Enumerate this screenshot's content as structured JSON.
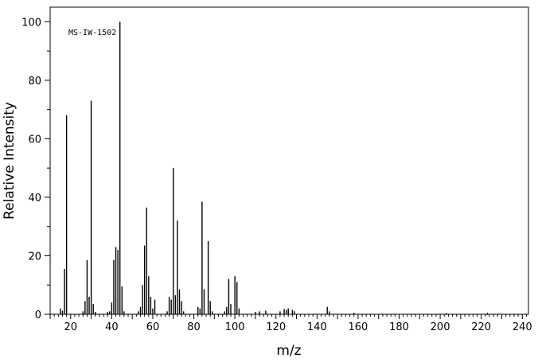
{
  "chart_data": {
    "type": "bar",
    "annotation": "MS-IW-1502",
    "xlabel": "m/z",
    "ylabel": "Relative Intensity",
    "xlim": [
      10,
      243
    ],
    "ylim": [
      0,
      105
    ],
    "xticks": [
      20,
      40,
      60,
      80,
      100,
      120,
      140,
      160,
      180,
      200,
      220,
      240
    ],
    "yticks": [
      0,
      20,
      40,
      60,
      80,
      100
    ],
    "grid": false,
    "color": "#000000",
    "peaks": [
      {
        "mz": 15,
        "intensity": 2.0
      },
      {
        "mz": 16,
        "intensity": 1.2
      },
      {
        "mz": 17,
        "intensity": 15.5
      },
      {
        "mz": 18,
        "intensity": 68.0
      },
      {
        "mz": 26,
        "intensity": 1.0
      },
      {
        "mz": 27,
        "intensity": 4.5
      },
      {
        "mz": 28,
        "intensity": 18.5
      },
      {
        "mz": 29,
        "intensity": 6.0
      },
      {
        "mz": 30,
        "intensity": 73.0
      },
      {
        "mz": 31,
        "intensity": 3.5
      },
      {
        "mz": 32,
        "intensity": 0.8
      },
      {
        "mz": 38,
        "intensity": 0.8
      },
      {
        "mz": 39,
        "intensity": 1.0
      },
      {
        "mz": 40,
        "intensity": 4.0
      },
      {
        "mz": 41,
        "intensity": 18.5
      },
      {
        "mz": 42,
        "intensity": 23.0
      },
      {
        "mz": 43,
        "intensity": 22.0
      },
      {
        "mz": 44,
        "intensity": 100.0
      },
      {
        "mz": 45,
        "intensity": 9.5
      },
      {
        "mz": 46,
        "intensity": 1.0
      },
      {
        "mz": 53,
        "intensity": 1.0
      },
      {
        "mz": 54,
        "intensity": 2.5
      },
      {
        "mz": 55,
        "intensity": 10.0
      },
      {
        "mz": 56,
        "intensity": 23.5
      },
      {
        "mz": 57,
        "intensity": 36.5
      },
      {
        "mz": 58,
        "intensity": 13.0
      },
      {
        "mz": 59,
        "intensity": 6.0
      },
      {
        "mz": 60,
        "intensity": 2.0
      },
      {
        "mz": 61,
        "intensity": 5.0
      },
      {
        "mz": 67,
        "intensity": 1.0
      },
      {
        "mz": 68,
        "intensity": 6.0
      },
      {
        "mz": 69,
        "intensity": 5.0
      },
      {
        "mz": 70,
        "intensity": 50.0
      },
      {
        "mz": 71,
        "intensity": 6.5
      },
      {
        "mz": 72,
        "intensity": 32.0
      },
      {
        "mz": 73,
        "intensity": 8.5
      },
      {
        "mz": 74,
        "intensity": 4.5
      },
      {
        "mz": 75,
        "intensity": 1.0
      },
      {
        "mz": 82,
        "intensity": 2.5
      },
      {
        "mz": 83,
        "intensity": 2.0
      },
      {
        "mz": 84,
        "intensity": 38.5
      },
      {
        "mz": 85,
        "intensity": 8.5
      },
      {
        "mz": 87,
        "intensity": 25.0
      },
      {
        "mz": 88,
        "intensity": 4.5
      },
      {
        "mz": 89,
        "intensity": 1.0
      },
      {
        "mz": 95,
        "intensity": 1.0
      },
      {
        "mz": 96,
        "intensity": 2.5
      },
      {
        "mz": 97,
        "intensity": 12.0
      },
      {
        "mz": 98,
        "intensity": 3.5
      },
      {
        "mz": 100,
        "intensity": 13.0
      },
      {
        "mz": 101,
        "intensity": 11.0
      },
      {
        "mz": 102,
        "intensity": 2.0
      },
      {
        "mz": 110,
        "intensity": 0.8
      },
      {
        "mz": 112,
        "intensity": 1.0
      },
      {
        "mz": 115,
        "intensity": 1.2
      },
      {
        "mz": 122,
        "intensity": 1.0
      },
      {
        "mz": 124,
        "intensity": 1.8
      },
      {
        "mz": 125,
        "intensity": 1.5
      },
      {
        "mz": 126,
        "intensity": 2.0
      },
      {
        "mz": 128,
        "intensity": 1.5
      },
      {
        "mz": 129,
        "intensity": 1.0
      },
      {
        "mz": 145,
        "intensity": 2.5
      },
      {
        "mz": 146,
        "intensity": 1.0
      },
      {
        "mz": 158,
        "intensity": 0.5
      },
      {
        "mz": 203,
        "intensity": 0.4
      },
      {
        "mz": 223,
        "intensity": 0.5
      }
    ]
  }
}
